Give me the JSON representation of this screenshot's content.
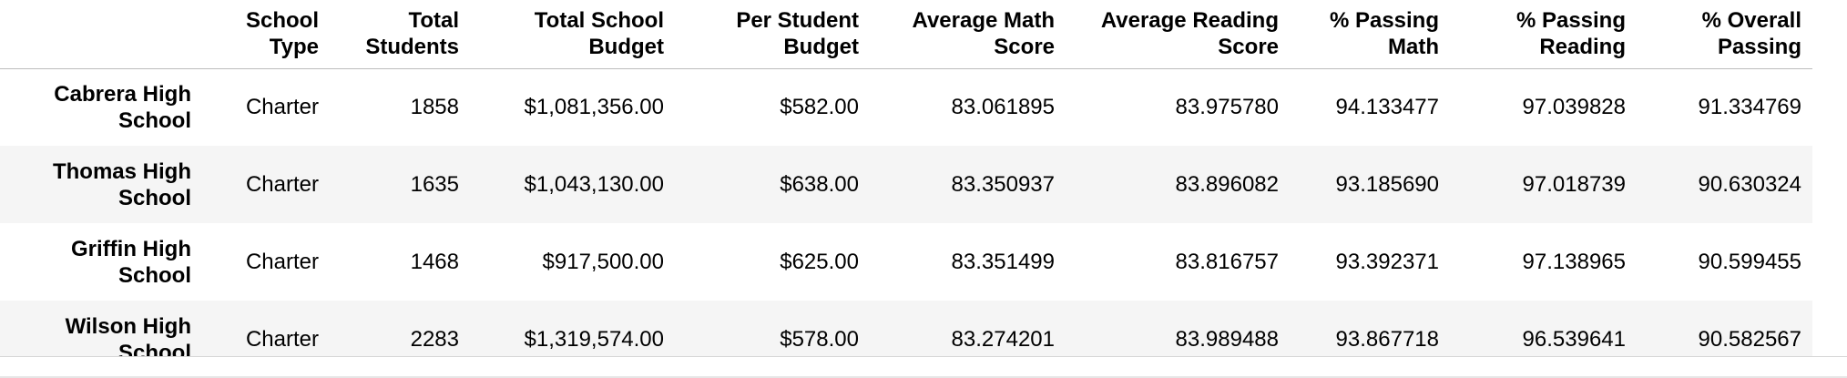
{
  "table": {
    "columns": [
      "",
      "School Type",
      "Total Students",
      "Total School Budget",
      "Per Student Budget",
      "Average Math Score",
      "Average Reading Score",
      "% Passing Math",
      "% Passing Reading",
      "% Overall Passing"
    ],
    "rows": [
      {
        "school": "Cabrera High School",
        "type": "Charter",
        "students": "1858",
        "budget": "$1,081,356.00",
        "per_student": "$582.00",
        "avg_math": "83.061895",
        "avg_reading": "83.975780",
        "pass_math": "94.133477",
        "pass_reading": "97.039828",
        "overall": "91.334769"
      },
      {
        "school": "Thomas High School",
        "type": "Charter",
        "students": "1635",
        "budget": "$1,043,130.00",
        "per_student": "$638.00",
        "avg_math": "83.350937",
        "avg_reading": "83.896082",
        "pass_math": "93.185690",
        "pass_reading": "97.018739",
        "overall": "90.630324"
      },
      {
        "school": "Griffin High School",
        "type": "Charter",
        "students": "1468",
        "budget": "$917,500.00",
        "per_student": "$625.00",
        "avg_math": "83.351499",
        "avg_reading": "83.816757",
        "pass_math": "93.392371",
        "pass_reading": "97.138965",
        "overall": "90.599455"
      },
      {
        "school": "Wilson High School",
        "type": "Charter",
        "students": "2283",
        "budget": "$1,319,574.00",
        "per_student": "$578.00",
        "avg_math": "83.274201",
        "avg_reading": "83.989488",
        "pass_math": "93.867718",
        "pass_reading": "96.539641",
        "overall": "90.582567"
      }
    ]
  },
  "colors": {
    "alt_row_bg": "#f5f5f5",
    "header_rule": "#bdbdbd"
  }
}
